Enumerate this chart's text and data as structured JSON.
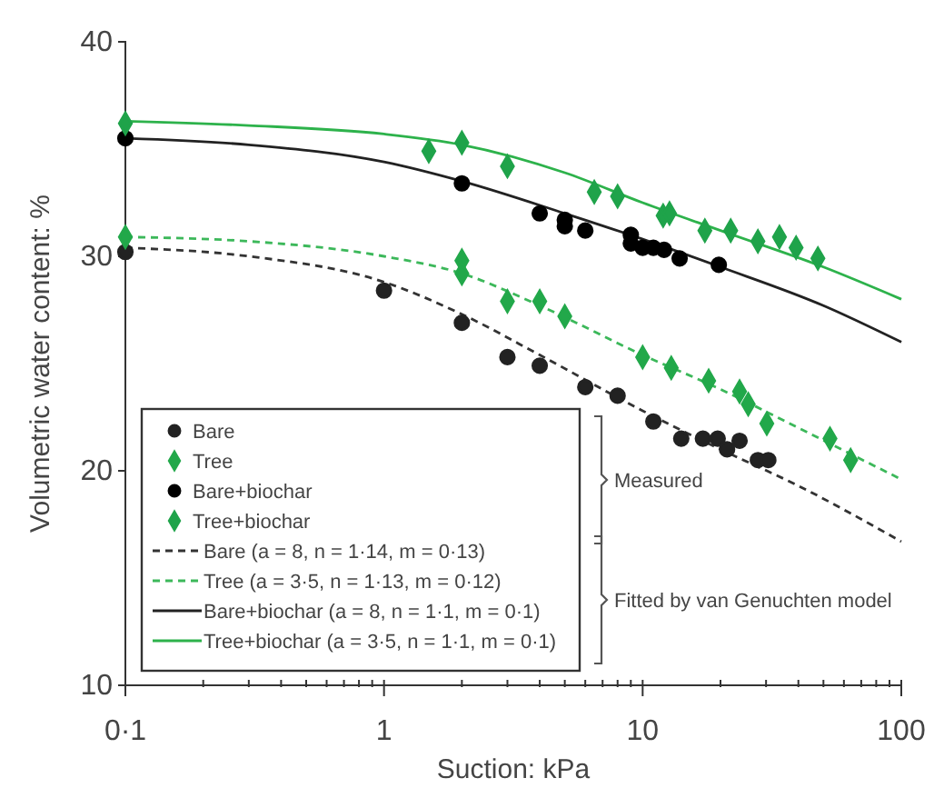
{
  "chart_data": {
    "type": "scatter",
    "xlabel": "Suction: kPa",
    "ylabel": "Volumetric water content: %",
    "log": "x",
    "xlim": [
      0.1,
      100
    ],
    "ylim": [
      10,
      40
    ],
    "xticks": [
      {
        "value": 0.1,
        "label": "0·1"
      },
      {
        "value": 0.2,
        "label": null
      },
      {
        "value": 0.3,
        "label": null
      },
      {
        "value": 0.4,
        "label": null
      },
      {
        "value": 0.5,
        "label": null
      },
      {
        "value": 0.6,
        "label": null
      },
      {
        "value": 0.7,
        "label": null
      },
      {
        "value": 0.8,
        "label": null
      },
      {
        "value": 0.9,
        "label": null
      },
      1,
      {
        "value": 2,
        "label": null
      },
      {
        "value": 3,
        "label": null
      },
      {
        "value": 4,
        "label": null
      },
      {
        "value": 5,
        "label": null
      },
      {
        "value": 6,
        "label": null
      },
      {
        "value": 7,
        "label": null
      },
      {
        "value": 8,
        "label": null
      },
      {
        "value": 9,
        "label": null
      },
      10,
      {
        "value": 20,
        "label": null
      },
      {
        "value": 30,
        "label": null
      },
      {
        "value": 40,
        "label": null
      },
      {
        "value": 50,
        "label": null
      },
      {
        "value": 60,
        "label": null
      },
      {
        "value": 70,
        "label": null
      },
      {
        "value": 80,
        "label": null
      },
      {
        "value": 90,
        "label": null
      },
      100
    ],
    "yticks": [
      10,
      20,
      30,
      40
    ],
    "grid": false,
    "legend": "bottom left",
    "series": [
      {
        "name": "Bare",
        "marker": "circle",
        "color": "#222222",
        "x": [
          0.1,
          1,
          2,
          3,
          4,
          6,
          8,
          11,
          14.1,
          17.1,
          19.5,
          21.2,
          23.7,
          27.9,
          30.6
        ],
        "values": [
          30.2,
          28.4,
          26.9,
          25.3,
          24.9,
          23.9,
          23.5,
          22.3,
          21.5,
          21.5,
          21.5,
          21.0,
          21.4,
          20.5,
          20.5
        ]
      },
      {
        "name": "Tree",
        "marker": "diamond",
        "color": "#22a84a",
        "x": [
          0.1,
          2,
          2,
          3,
          4,
          5,
          10,
          12.9,
          18,
          23.7,
          25.6,
          30.2,
          53,
          63.7
        ],
        "values": [
          30.9,
          29.8,
          29.2,
          27.9,
          27.9,
          27.2,
          25.3,
          24.8,
          24.2,
          23.7,
          23.1,
          22.2,
          21.5,
          20.5
        ]
      },
      {
        "name": "Bare+biochar",
        "marker": "circle",
        "color": "#000000",
        "x": [
          0.1,
          2,
          4,
          5,
          5,
          6,
          9,
          9,
          10,
          11,
          12.1,
          13.9,
          19.7
        ],
        "values": [
          35.5,
          33.4,
          32.0,
          31.7,
          31.4,
          31.2,
          31.0,
          30.6,
          30.4,
          30.4,
          30.3,
          29.9,
          29.6
        ]
      },
      {
        "name": "Tree+biochar",
        "marker": "diamond",
        "color": "#1fa34a",
        "x": [
          0.1,
          1.49,
          2,
          3,
          6.5,
          8,
          12,
          12.7,
          17.4,
          21.9,
          27.9,
          33.8,
          39.2,
          47.6
        ],
        "values": [
          36.2,
          34.9,
          35.3,
          34.2,
          33.0,
          32.8,
          31.9,
          32.0,
          31.2,
          31.2,
          30.7,
          30.9,
          30.4,
          29.9
        ]
      },
      {
        "name": "Bare (a = 8, n = 1·14, m = 0·13)",
        "type": "line",
        "line_style": "dashed",
        "color": "#333333",
        "x": [
          0.1,
          0.3,
          1,
          2,
          4,
          10,
          20,
          40,
          100
        ],
        "values": [
          30.4,
          30.0,
          28.8,
          27.3,
          25.4,
          22.8,
          21.0,
          19.3,
          16.7
        ]
      },
      {
        "name": "Tree (a = 3·5, n = 1·13, m = 0·12)",
        "type": "line",
        "line_style": "dashed",
        "color": "#3cb85a",
        "x": [
          0.1,
          0.3,
          1,
          2,
          4,
          10,
          20,
          40,
          100
        ],
        "values": [
          30.9,
          30.7,
          30.0,
          29.2,
          27.7,
          25.4,
          23.8,
          22.0,
          19.6
        ]
      },
      {
        "name": "Bare+biochar (a = 8, n = 1·1, m = 0·1)",
        "type": "line",
        "line_style": "solid",
        "color": "#222222",
        "x": [
          0.1,
          0.3,
          1,
          2,
          5,
          10,
          20,
          50,
          100
        ],
        "values": [
          35.5,
          35.2,
          34.4,
          33.5,
          32.0,
          30.8,
          29.5,
          27.7,
          26.0
        ]
      },
      {
        "name": "Tree+biochar (a = 3·5, n = 1·1, m = 0·1)",
        "type": "line",
        "line_style": "solid",
        "color": "#2db24b",
        "x": [
          0.1,
          0.3,
          1,
          2,
          5,
          10,
          20,
          50,
          100
        ],
        "values": [
          36.3,
          36.1,
          35.7,
          35.2,
          33.9,
          32.5,
          31.2,
          29.5,
          28.0
        ]
      }
    ],
    "annotations": [
      "Measured",
      "Fitted by van Genuchten model"
    ]
  }
}
